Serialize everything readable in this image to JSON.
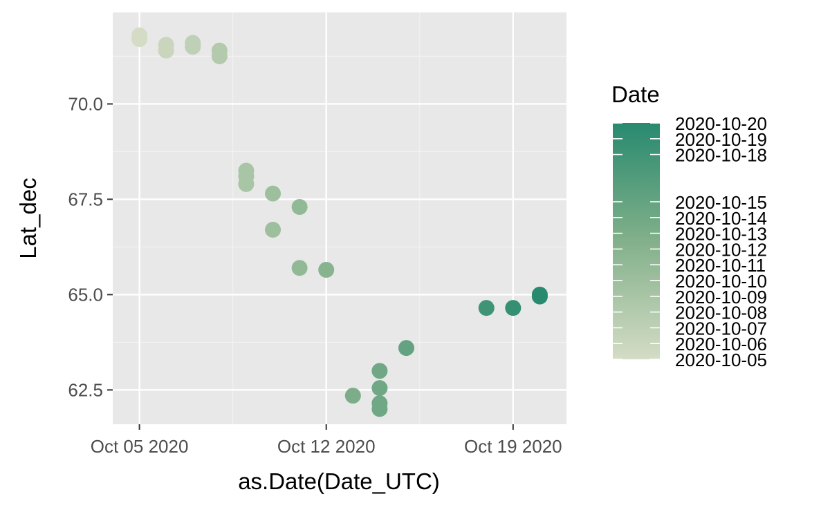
{
  "chart_data": {
    "type": "scatter",
    "title": "",
    "xlabel": "as.Date(Date_UTC)",
    "ylabel": "Lat_dec",
    "x_range": [
      "2020-10-04",
      "2020-10-21"
    ],
    "ylim": [
      61.6,
      72.4
    ],
    "x_ticks": [
      {
        "date": "2020-10-05",
        "label": "Oct 05 2020"
      },
      {
        "date": "2020-10-12",
        "label": "Oct 12 2020"
      },
      {
        "date": "2020-10-19",
        "label": "Oct 19 2020"
      }
    ],
    "y_ticks": [
      {
        "value": 62.5,
        "label": "62.5"
      },
      {
        "value": 65.0,
        "label": "65.0"
      },
      {
        "value": 67.5,
        "label": "67.5"
      },
      {
        "value": 70.0,
        "label": "70.0"
      }
    ],
    "grid": true,
    "points": [
      {
        "x": "2020-10-05",
        "y": 71.8
      },
      {
        "x": "2020-10-05",
        "y": 71.7
      },
      {
        "x": "2020-10-06",
        "y": 71.55
      },
      {
        "x": "2020-10-06",
        "y": 71.4
      },
      {
        "x": "2020-10-07",
        "y": 71.6
      },
      {
        "x": "2020-10-07",
        "y": 71.5
      },
      {
        "x": "2020-10-08",
        "y": 71.4
      },
      {
        "x": "2020-10-08",
        "y": 71.25
      },
      {
        "x": "2020-10-09",
        "y": 68.25
      },
      {
        "x": "2020-10-09",
        "y": 68.1
      },
      {
        "x": "2020-10-09",
        "y": 67.9
      },
      {
        "x": "2020-10-10",
        "y": 67.65
      },
      {
        "x": "2020-10-10",
        "y": 66.7
      },
      {
        "x": "2020-10-11",
        "y": 67.3
      },
      {
        "x": "2020-10-11",
        "y": 65.7
      },
      {
        "x": "2020-10-12",
        "y": 65.65
      },
      {
        "x": "2020-10-13",
        "y": 62.35
      },
      {
        "x": "2020-10-14",
        "y": 63.0
      },
      {
        "x": "2020-10-14",
        "y": 62.55
      },
      {
        "x": "2020-10-14",
        "y": 62.15
      },
      {
        "x": "2020-10-14",
        "y": 62.0
      },
      {
        "x": "2020-10-15",
        "y": 63.6
      },
      {
        "x": "2020-10-18",
        "y": 64.65
      },
      {
        "x": "2020-10-19",
        "y": 64.65
      },
      {
        "x": "2020-10-20",
        "y": 65.0
      },
      {
        "x": "2020-10-20",
        "y": 64.95
      }
    ],
    "legend": {
      "title": "Date",
      "placement": "right",
      "type": "colorbar",
      "color_low": "#d4dcc5",
      "color_mid": "#82b08a",
      "color_high": "#288a6f",
      "range": [
        "2020-10-05",
        "2020-10-20"
      ],
      "labels": [
        {
          "date": "2020-10-20",
          "label": "2020-10-20"
        },
        {
          "date": "2020-10-19",
          "label": "2020-10-19"
        },
        {
          "date": "2020-10-18",
          "label": "2020-10-18"
        },
        {
          "date": "2020-10-15",
          "label": "2020-10-15"
        },
        {
          "date": "2020-10-14",
          "label": "2020-10-14"
        },
        {
          "date": "2020-10-13",
          "label": "2020-10-13"
        },
        {
          "date": "2020-10-12",
          "label": "2020-10-12"
        },
        {
          "date": "2020-10-11",
          "label": "2020-10-11"
        },
        {
          "date": "2020-10-10",
          "label": "2020-10-10"
        },
        {
          "date": "2020-10-09",
          "label": "2020-10-09"
        },
        {
          "date": "2020-10-08",
          "label": "2020-10-08"
        },
        {
          "date": "2020-10-07",
          "label": "2020-10-07"
        },
        {
          "date": "2020-10-06",
          "label": "2020-10-06"
        },
        {
          "date": "2020-10-05",
          "label": "2020-10-05"
        }
      ]
    },
    "colors": {
      "panel_background": "#e8e8e8",
      "grid_major": "#ffffff",
      "grid_minor": "#f2f2f2"
    }
  }
}
